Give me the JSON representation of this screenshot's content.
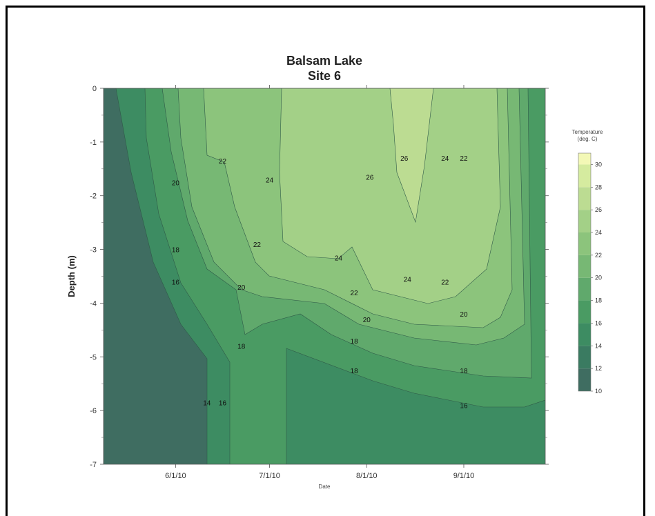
{
  "chart_data": {
    "type": "heatmap",
    "subtype": "filled-contour",
    "title": [
      "Balsam Lake",
      "Site 6"
    ],
    "xlabel": "Date",
    "ylabel": "Depth (m)",
    "x_ticks": [
      "6/1/10",
      "7/1/10",
      "8/1/10",
      "9/1/10"
    ],
    "y_ticks": [
      "0",
      "-1",
      "-2",
      "-3",
      "-4",
      "-5",
      "-6",
      "-7"
    ],
    "ylim": [
      -7,
      0
    ],
    "xlim": [
      "5/9/10",
      "9/27/10"
    ],
    "colorbar": {
      "title": [
        "Temperature",
        "(deg. C)"
      ],
      "ticks": [
        "30",
        "28",
        "26",
        "24",
        "22",
        "20",
        "18",
        "16",
        "14",
        "12",
        "10"
      ],
      "range": [
        10,
        31
      ],
      "colors": [
        "#3f6d61",
        "#3a7b61",
        "#3d8c62",
        "#4a9b63",
        "#60a96c",
        "#77b874",
        "#8cc47c",
        "#a3d087",
        "#bcdc92",
        "#d5eb9f",
        "#f3f8b6"
      ]
    },
    "contour_labels": [
      {
        "text": "22",
        "date": "6/16/10",
        "depth": -1.35
      },
      {
        "text": "20",
        "date": "6/1/10",
        "depth": -1.75
      },
      {
        "text": "24",
        "date": "7/1/10",
        "depth": -1.7
      },
      {
        "text": "26",
        "date": "8/2/10",
        "depth": -1.65
      },
      {
        "text": "26",
        "date": "8/13/10",
        "depth": -1.3
      },
      {
        "text": "24",
        "date": "8/26/10",
        "depth": -1.3
      },
      {
        "text": "22",
        "date": "9/1/10",
        "depth": -1.3
      },
      {
        "text": "22",
        "date": "6/27/10",
        "depth": -2.9
      },
      {
        "text": "18",
        "date": "6/1/10",
        "depth": -3.0
      },
      {
        "text": "24",
        "date": "7/23/10",
        "depth": -3.15
      },
      {
        "text": "16",
        "date": "6/1/10",
        "depth": -3.6
      },
      {
        "text": "20",
        "date": "6/22/10",
        "depth": -3.7
      },
      {
        "text": "22",
        "date": "7/28/10",
        "depth": -3.8
      },
      {
        "text": "24",
        "date": "8/14/10",
        "depth": -3.55
      },
      {
        "text": "22",
        "date": "8/26/10",
        "depth": -3.6
      },
      {
        "text": "20",
        "date": "8/1/10",
        "depth": -4.3
      },
      {
        "text": "20",
        "date": "9/1/10",
        "depth": -4.2
      },
      {
        "text": "18",
        "date": "6/22/10",
        "depth": -4.8
      },
      {
        "text": "18",
        "date": "7/28/10",
        "depth": -4.7
      },
      {
        "text": "18",
        "date": "7/28/10",
        "depth": -5.25
      },
      {
        "text": "18",
        "date": "9/1/10",
        "depth": -5.25
      },
      {
        "text": "14",
        "date": "6/11/10",
        "depth": -5.85
      },
      {
        "text": "16",
        "date": "6/16/10",
        "depth": -5.85
      },
      {
        "text": "16",
        "date": "9/1/10",
        "depth": -5.9
      }
    ]
  }
}
